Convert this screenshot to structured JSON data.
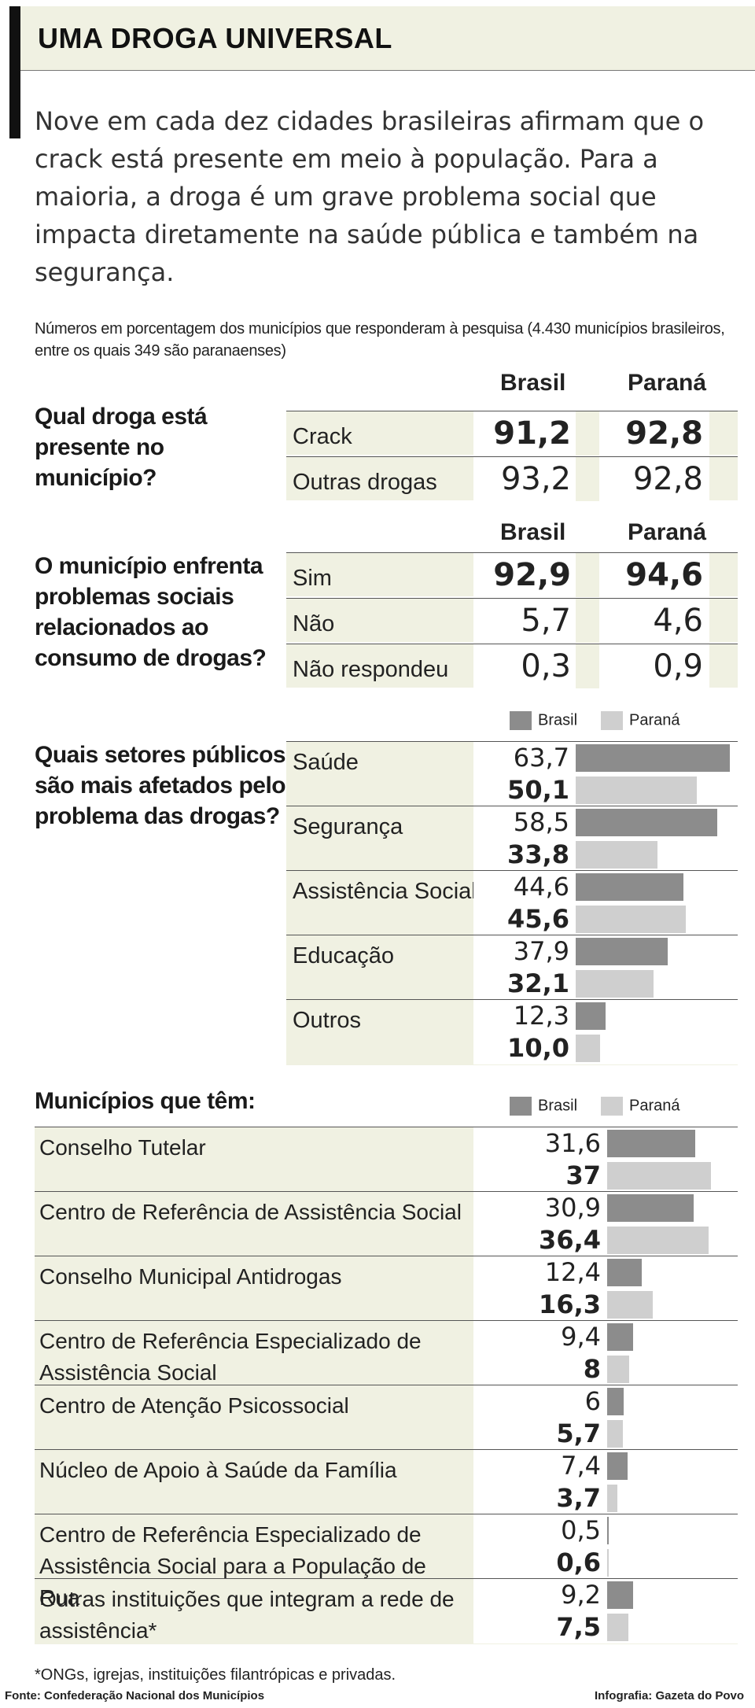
{
  "header": {
    "title": "UMA DROGA UNIVERSAL"
  },
  "intro": "Nove em cada dez cidades brasileiras afirmam que o crack está presente em meio à população.  Para a maioria, a droga é um grave problema social que impacta diretamente na saúde pública e também na segurança.",
  "note": "Números em porcentagem dos municípios que responderam à pesquisa (4.430 municípios brasileiros, entre os quais 349 são paranaenses)",
  "colors": {
    "brasil": "#8c8c8c",
    "parana": "#cfcfcf",
    "panel": "#f0f1e2"
  },
  "columns": {
    "brasil": "Brasil",
    "parana": "Paraná"
  },
  "chart_data": [
    {
      "type": "table",
      "question": "Qual droga está presente no município?",
      "rows": [
        {
          "label": "Crack",
          "brasil": "91,2",
          "parana": "92,8",
          "bold": true
        },
        {
          "label": "Outras drogas",
          "brasil": "93,2",
          "parana": "92,8",
          "bold": false
        }
      ]
    },
    {
      "type": "table",
      "question": "O município enfrenta problemas sociais relacionados ao consumo de drogas?",
      "rows": [
        {
          "label": "Sim",
          "brasil": "92,9",
          "parana": "94,6",
          "bold": true
        },
        {
          "label": "Não",
          "brasil": "5,7",
          "parana": "4,6",
          "bold": false
        },
        {
          "label": "Não respondeu",
          "brasil": "0,3",
          "parana": "0,9",
          "bold": false
        }
      ]
    },
    {
      "type": "bar",
      "question": "Quais setores públicos são mais afetados pelo problema das drogas?",
      "legend": [
        "Brasil",
        "Paraná"
      ],
      "xlim": [
        0,
        65
      ],
      "categories": [
        "Saúde",
        "Segurança",
        "Assistência Social",
        "Educação",
        "Outros"
      ],
      "series": [
        {
          "name": "Brasil",
          "values": [
            63.7,
            58.5,
            44.6,
            37.9,
            12.3
          ],
          "labels": [
            "63,7",
            "58,5",
            "44,6",
            "37,9",
            "12,3"
          ]
        },
        {
          "name": "Paraná",
          "values": [
            50.1,
            33.8,
            45.6,
            32.1,
            10.0
          ],
          "labels": [
            "50,1",
            "33,8",
            "45,6",
            "32,1",
            "10,0"
          ]
        }
      ]
    },
    {
      "type": "bar",
      "question": "Municípios que têm:",
      "legend": [
        "Brasil",
        "Paraná"
      ],
      "xlim": [
        0,
        45
      ],
      "categories": [
        "Conselho Tutelar",
        "Centro de Referência de Assistência Social",
        "Conselho Municipal Antidrogas",
        "Centro de Referência Especializado de Assistência Social",
        "Centro de Atenção Psicossocial",
        "Núcleo de Apoio à Saúde da Família",
        "Centro de Referência Especializado de Assistência Social para a População de Rua",
        "Outras instituições que integram a rede de assistência*"
      ],
      "series": [
        {
          "name": "Brasil",
          "values": [
            31.6,
            30.9,
            12.4,
            9.4,
            6,
            7.4,
            0.5,
            9.2
          ],
          "labels": [
            "31,6",
            "30,9",
            "12,4",
            "9,4",
            "6",
            "7,4",
            "0,5",
            "9,2"
          ]
        },
        {
          "name": "Paraná",
          "values": [
            37,
            36.4,
            16.3,
            8,
            5.7,
            3.7,
            0.6,
            7.5
          ],
          "labels": [
            "37",
            "36,4",
            "16,3",
            "8",
            "5,7",
            "3,7",
            "0,6",
            "7,5"
          ]
        }
      ]
    }
  ],
  "footnote": "*ONGs, igrejas, instituições filantrópicas e privadas.",
  "source": "Fonte: Confederação Nacional dos Municípios",
  "credit": "Infografia: Gazeta do Povo"
}
